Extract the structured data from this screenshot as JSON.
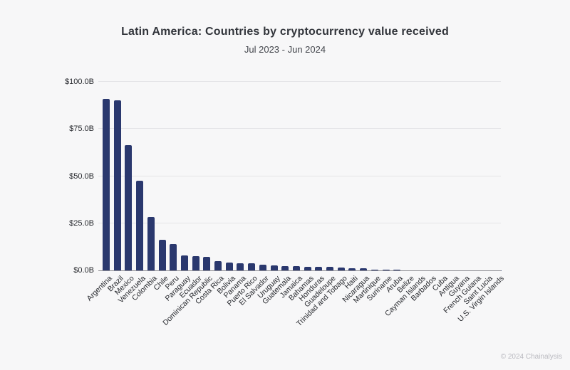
{
  "header": {
    "title": "Latin America: Countries by cryptocurrency value received",
    "subtitle": "Jul 2023 - Jun 2024"
  },
  "footer": {
    "credit": "© 2024 Chainalysis"
  },
  "colors": {
    "background": "#f7f7f8",
    "bar": "#2a386e",
    "gridline": "#e4e4e7",
    "axis_line": "#8d8d93",
    "tick_text": "#26282d"
  },
  "chart_data": {
    "type": "bar",
    "title": "Latin America: Countries by cryptocurrency value received",
    "subtitle": "Jul 2023 - Jun 2024",
    "unit": "USD billions",
    "categories": [
      "Argentina",
      "Brazil",
      "Mexico",
      "Venezuela",
      "Colombia",
      "Chile",
      "Peru",
      "Paraguay",
      "Ecuador",
      "Dominican Republic",
      "Costa Rica",
      "Bolivia",
      "Panama",
      "Puerto Rico",
      "El Salvador",
      "Uruguay",
      "Guatemala",
      "Jamaica",
      "Bahamas",
      "Honduras",
      "Guadeloupe",
      "Trinidad and Tobago",
      "Haiti",
      "Nicaragua",
      "Martinique",
      "Suriname",
      "Aruba",
      "Belize",
      "Cayman Islands",
      "Barbados",
      "Cuba",
      "Antigua",
      "Guyana",
      "French Guiana",
      "Saint Lucia",
      "U.S. Virgin Islands"
    ],
    "values": [
      91.1,
      90.3,
      66.4,
      47.5,
      28.3,
      16.1,
      13.8,
      7.9,
      7.6,
      7.0,
      4.9,
      4.1,
      3.8,
      3.7,
      2.9,
      2.6,
      2.3,
      2.1,
      2.0,
      2.0,
      1.9,
      1.7,
      1.2,
      1.0,
      0.5,
      0.3,
      0.2,
      0.15,
      0.12,
      0.1,
      0.08,
      0.07,
      0.06,
      0.05,
      0.04,
      0.03
    ],
    "xlabel": "",
    "ylabel": "",
    "ylim": [
      0,
      100
    ],
    "yticks": [
      0,
      25,
      50,
      75,
      100
    ],
    "ytick_labels": [
      "$0.0B",
      "$25.0B",
      "$50.0B",
      "$75.0B",
      "$100.0B"
    ],
    "grid": true,
    "legend": false,
    "x_label_rotation": 45
  }
}
